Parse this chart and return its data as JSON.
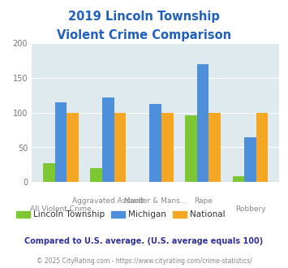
{
  "title_line1": "2019 Lincoln Township",
  "title_line2": "Violent Crime Comparison",
  "lincoln": [
    27,
    20,
    0,
    96,
    9
  ],
  "michigan": [
    115,
    122,
    112,
    170,
    65
  ],
  "national": [
    100,
    100,
    100,
    100,
    100
  ],
  "colors": {
    "lincoln": "#7dc832",
    "michigan": "#4d8fdb",
    "national": "#f5a623"
  },
  "ylim": [
    0,
    200
  ],
  "yticks": [
    0,
    50,
    100,
    150,
    200
  ],
  "background_color": "#deeaee",
  "title_color": "#2060c0",
  "tick_label_color": "#777777",
  "xlabel_color": "#888888",
  "legend_label_color": "#333333",
  "footer_text": "Compared to U.S. average. (U.S. average equals 100)",
  "footer_color": "#333399",
  "copyright_text": "© 2025 CityRating.com - https://www.cityrating.com/crime-statistics/",
  "copyright_color": "#888888",
  "line1_labels": [
    "",
    "Aggravated Assault",
    "Murder & Mans...",
    "Rape",
    ""
  ],
  "line2_labels": [
    "All Violent Crime",
    "",
    "",
    "",
    "Robbery"
  ]
}
